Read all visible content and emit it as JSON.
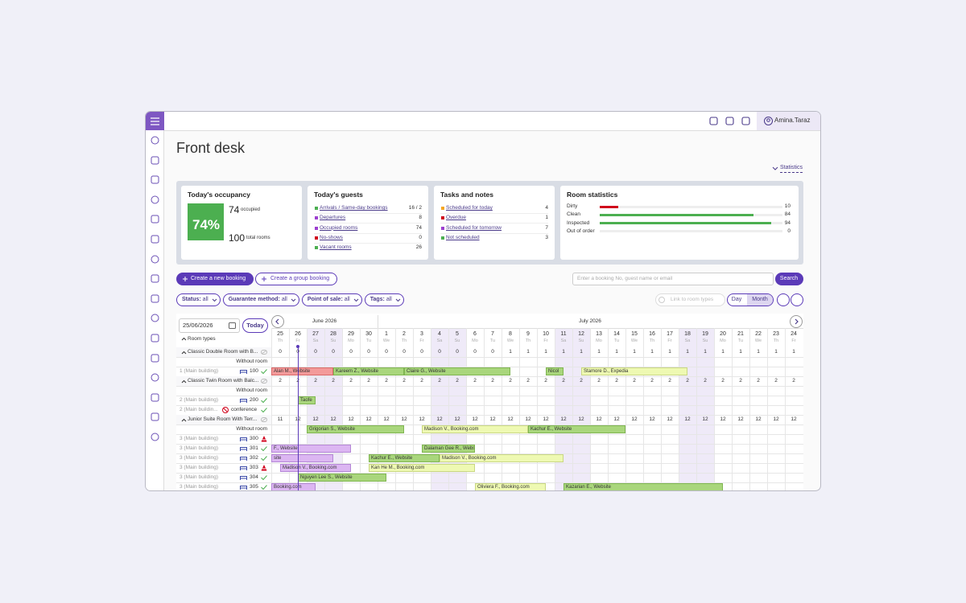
{
  "header": {
    "user": "Amina.Taraz"
  },
  "page": {
    "title": "Front desk",
    "statistics_link": "Statistics"
  },
  "occupancy": {
    "title": "Today's occupancy",
    "percent": "74%",
    "occupied": 74,
    "occupied_label": "occupied",
    "total": 100,
    "total_label": "total rooms"
  },
  "guests": {
    "title": "Today's guests",
    "items": [
      {
        "label": "Arrivals / Same-day bookings",
        "value": "16 / 2",
        "color": "#4caf50"
      },
      {
        "label": "Departures",
        "value": 8,
        "color": "#9c3fd0"
      },
      {
        "label": "Occupied rooms",
        "value": 74,
        "color": "#9c3fd0"
      },
      {
        "label": "No-shows",
        "value": 0,
        "color": "#d0021b"
      },
      {
        "label": "Vacant rooms",
        "value": 26,
        "color": "#4caf50"
      }
    ]
  },
  "tasks": {
    "title": "Tasks and notes",
    "items": [
      {
        "label": "Scheduled for today",
        "value": 4,
        "color": "#f5a623"
      },
      {
        "label": "Overdue",
        "value": 1,
        "color": "#d0021b"
      },
      {
        "label": "Scheduled for tomorrow",
        "value": 7,
        "color": "#9c3fd0"
      },
      {
        "label": "Not scheduled",
        "value": 3,
        "color": "#4caf50"
      }
    ]
  },
  "room_statistics": {
    "title": "Room statistics",
    "items": [
      {
        "label": "Dirty",
        "value": 10,
        "color": "#d0021b"
      },
      {
        "label": "Clean",
        "value": 84,
        "color": "#4caf50"
      },
      {
        "label": "Inspected",
        "value": 94,
        "color": "#4caf50"
      },
      {
        "label": "Out of order",
        "value": 0,
        "color": "#999999"
      }
    ]
  },
  "actions": {
    "new_booking": "Create a new booking",
    "group_booking": "Create a group booking",
    "search_placeholder": "Enter a booking No, guest name or email",
    "search": "Search"
  },
  "filters": {
    "items": [
      {
        "label": "Status:",
        "value": "all"
      },
      {
        "label": "Guarantee method:",
        "value": "all"
      },
      {
        "label": "Point of sale:",
        "value": "all"
      },
      {
        "label": "Tags:",
        "value": "all"
      }
    ],
    "link_toggle": "Link to room types",
    "day": "Day",
    "month": "Month"
  },
  "calendar": {
    "date": "25/06/2026",
    "today": "Today",
    "room_types": "Room types",
    "months": [
      {
        "label": "June 2026",
        "span": 6
      },
      {
        "label": "July 2026",
        "span": 24
      }
    ],
    "days": [
      {
        "day": "25",
        "weekday": "Th"
      },
      {
        "day": "26",
        "weekday": "Fr"
      },
      {
        "day": "27",
        "weekday": "Sa",
        "weekend": true
      },
      {
        "day": "28",
        "weekday": "Su",
        "weekend": true
      },
      {
        "day": "29",
        "weekday": "Mo"
      },
      {
        "day": "30",
        "weekday": "Tu"
      },
      {
        "day": "1",
        "weekday": "We"
      },
      {
        "day": "2",
        "weekday": "Th"
      },
      {
        "day": "3",
        "weekday": "Fr"
      },
      {
        "day": "4",
        "weekday": "Sa",
        "weekend": true
      },
      {
        "day": "5",
        "weekday": "Su",
        "weekend": true
      },
      {
        "day": "6",
        "weekday": "Mo"
      },
      {
        "day": "7",
        "weekday": "Tu"
      },
      {
        "day": "8",
        "weekday": "We"
      },
      {
        "day": "9",
        "weekday": "Th"
      },
      {
        "day": "10",
        "weekday": "Fr"
      },
      {
        "day": "11",
        "weekday": "Sa",
        "weekend": true
      },
      {
        "day": "12",
        "weekday": "Su",
        "weekend": true
      },
      {
        "day": "13",
        "weekday": "Mo"
      },
      {
        "day": "14",
        "weekday": "Tu"
      },
      {
        "day": "15",
        "weekday": "We"
      },
      {
        "day": "16",
        "weekday": "Th"
      },
      {
        "day": "17",
        "weekday": "Fr"
      },
      {
        "day": "18",
        "weekday": "Sa",
        "weekend": true
      },
      {
        "day": "19",
        "weekday": "Su",
        "weekend": true
      },
      {
        "day": "20",
        "weekday": "Mo"
      },
      {
        "day": "21",
        "weekday": "Tu"
      },
      {
        "day": "22",
        "weekday": "We"
      },
      {
        "day": "23",
        "weekday": "Th"
      },
      {
        "day": "24",
        "weekday": "Fr"
      }
    ],
    "rows": [
      {
        "kind": "type",
        "label": "Classic Double Room with B...",
        "values": [
          0,
          0,
          0,
          0,
          0,
          0,
          0,
          0,
          0,
          0,
          0,
          0,
          0,
          1,
          1,
          1,
          1,
          1,
          1,
          1,
          1,
          1,
          1,
          1,
          1,
          1,
          1,
          1,
          1,
          1
        ]
      },
      {
        "kind": "none",
        "label": "Without room",
        "bookings": []
      },
      {
        "kind": "room",
        "label": "1 (Main building)",
        "number": "100",
        "bookings": [
          {
            "text": "Alan M., Website",
            "from": 0,
            "to": 3.5,
            "color": "red"
          },
          {
            "text": "Kareem Z., Website",
            "from": 3.5,
            "to": 7.5,
            "color": "green"
          },
          {
            "text": "Claire G., Website",
            "from": 7.5,
            "to": 13.5,
            "color": "green"
          },
          {
            "text": "Nicol",
            "from": 15.5,
            "to": 16.5,
            "color": "green"
          },
          {
            "text": "Stamore D., Expedia",
            "from": 17.5,
            "to": 23.5,
            "color": "yellow"
          }
        ]
      },
      {
        "kind": "type",
        "label": "Classic Twin Room with Balc...",
        "values": [
          2,
          2,
          2,
          2,
          2,
          2,
          2,
          2,
          2,
          2,
          2,
          2,
          2,
          2,
          2,
          2,
          2,
          2,
          2,
          2,
          2,
          2,
          2,
          2,
          2,
          2,
          2,
          2,
          2,
          2
        ]
      },
      {
        "kind": "none",
        "label": "Without room",
        "bookings": []
      },
      {
        "kind": "room",
        "label": "2 (Main building)",
        "number": "200",
        "bookings": [
          {
            "text": "Taofe",
            "from": 1.5,
            "to": 2.5,
            "color": "green"
          }
        ]
      },
      {
        "kind": "room",
        "label": "2 (Main buildin...",
        "number": "conference",
        "blocked": true,
        "bookings": []
      },
      {
        "kind": "type",
        "label": "Junior Suite Room With Terr...",
        "values": [
          11,
          12,
          12,
          12,
          12,
          12,
          12,
          12,
          12,
          12,
          12,
          12,
          12,
          12,
          12,
          12,
          12,
          12,
          12,
          12,
          12,
          12,
          12,
          12,
          12,
          12,
          12,
          12,
          12,
          12
        ]
      },
      {
        "kind": "none",
        "label": "Without room",
        "bookings": [
          {
            "text": "Grigorian S., Website",
            "from": 2,
            "to": 7.5,
            "color": "green"
          },
          {
            "text": "Madison V., Booking.com",
            "from": 8.5,
            "to": 14.5,
            "color": "yellow"
          },
          {
            "text": "Kachur E., Website",
            "from": 14.5,
            "to": 20,
            "color": "green"
          }
        ]
      },
      {
        "kind": "room",
        "label": "3 (Main building)",
        "number": "300",
        "dirty": true,
        "bookings": []
      },
      {
        "kind": "room",
        "label": "3 (Main building)",
        "number": "301",
        "bookings": [
          {
            "text": "F., Website",
            "from": 0,
            "to": 4.5,
            "color": "purple"
          },
          {
            "text": "Dalaman Gee R., Website",
            "from": 8.5,
            "to": 11.5,
            "color": "green"
          }
        ]
      },
      {
        "kind": "room",
        "label": "3 (Main building)",
        "number": "302",
        "bookings": [
          {
            "text": "site",
            "from": 0,
            "to": 3.5,
            "color": "purple"
          },
          {
            "text": "Kachur E., Website",
            "from": 5.5,
            "to": 9.5,
            "color": "green"
          },
          {
            "text": "Madison V., Booking.com",
            "from": 9.5,
            "to": 16.5,
            "color": "yellow"
          }
        ]
      },
      {
        "kind": "room",
        "label": "3 (Main building)",
        "number": "303",
        "dirty": true,
        "bookings": [
          {
            "text": "Madison V., Booking.com",
            "from": 0.5,
            "to": 4.5,
            "color": "purple"
          },
          {
            "text": "Kan He M., Booking.com",
            "from": 5.5,
            "to": 11.5,
            "color": "yellow"
          }
        ]
      },
      {
        "kind": "room",
        "label": "3 (Main building)",
        "number": "304",
        "bookings": [
          {
            "text": "Nguyen Lee S., Website",
            "from": 1.5,
            "to": 6.5,
            "color": "green"
          }
        ]
      },
      {
        "kind": "room",
        "label": "3 (Main building)",
        "number": "305",
        "bookings": [
          {
            "text": "Booking.com",
            "from": 0,
            "to": 2.5,
            "color": "purple"
          },
          {
            "text": "Oliviera F., Booking.com",
            "from": 11.5,
            "to": 15.5,
            "color": "yellow"
          },
          {
            "text": "Kazarian E., Website",
            "from": 16.5,
            "to": 25.5,
            "color": "green"
          }
        ]
      }
    ]
  }
}
